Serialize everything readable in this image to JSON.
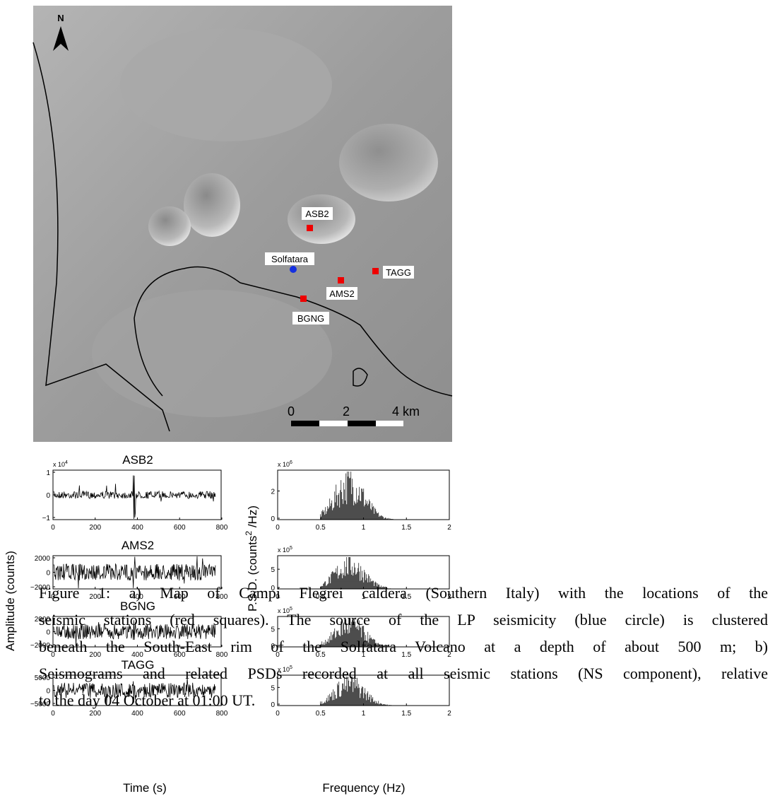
{
  "map": {
    "north": "N",
    "source": "Solfatara",
    "stations": [
      "ASB2",
      "AMS2",
      "TAGG",
      "BGNG"
    ],
    "scale": {
      "ticks": [
        "0",
        "2",
        "4"
      ],
      "unit": "km"
    }
  },
  "seismograms": {
    "y_label": "Amplitude (counts)",
    "x_label": "Time (s)",
    "x_ticks": [
      "0",
      "200",
      "400",
      "600",
      "800"
    ],
    "panels": [
      {
        "title": "ASB2",
        "y_ticks": [
          "1",
          "0",
          "−1"
        ],
        "multiplier": {
          "base": "x 10",
          "exp": "4"
        }
      },
      {
        "title": "AMS2",
        "y_ticks": [
          "2000",
          "0",
          "−2000"
        ]
      },
      {
        "title": "BGNG",
        "y_ticks": [
          "2000",
          "0",
          "−2000"
        ]
      },
      {
        "title": "TAGG",
        "y_ticks": [
          "5000",
          "0",
          "−5000"
        ]
      }
    ]
  },
  "psd": {
    "y_label_pre": "P.S.D. (counts",
    "y_label_exp": "2",
    "y_label_post": " /Hz)",
    "x_label": "Frequency (Hz)",
    "x_ticks": [
      "0",
      "0.5",
      "1",
      "1.5",
      "2"
    ],
    "panels": [
      {
        "y_ticks": [
          "2",
          "0"
        ],
        "multiplier": {
          "base": "x 10",
          "exp": "6"
        }
      },
      {
        "y_ticks": [
          "5",
          "0"
        ],
        "multiplier": {
          "base": "x 10",
          "exp": "5"
        }
      },
      {
        "y_ticks": [
          "5",
          "0"
        ],
        "multiplier": {
          "base": "x 10",
          "exp": "5"
        }
      },
      {
        "y_ticks": [
          "5",
          "0"
        ],
        "multiplier": {
          "base": "x 10",
          "exp": "5"
        }
      }
    ]
  },
  "caption": {
    "lines": [
      "Figure 1:  a) Map of Campi Flegrei caldera (Southern Italy) with the locations of the",
      "seismic stations (red squares).  The source of the LP seismicity (blue circle) is clustered",
      "beneath the South-East rim of the Solfatara Volcano at a depth of about 500 m; b)",
      "Seismograms and related PSDs recorded at all seismic stations (NS component), relative",
      "to the day 04 October at 01:00 UT."
    ]
  }
}
